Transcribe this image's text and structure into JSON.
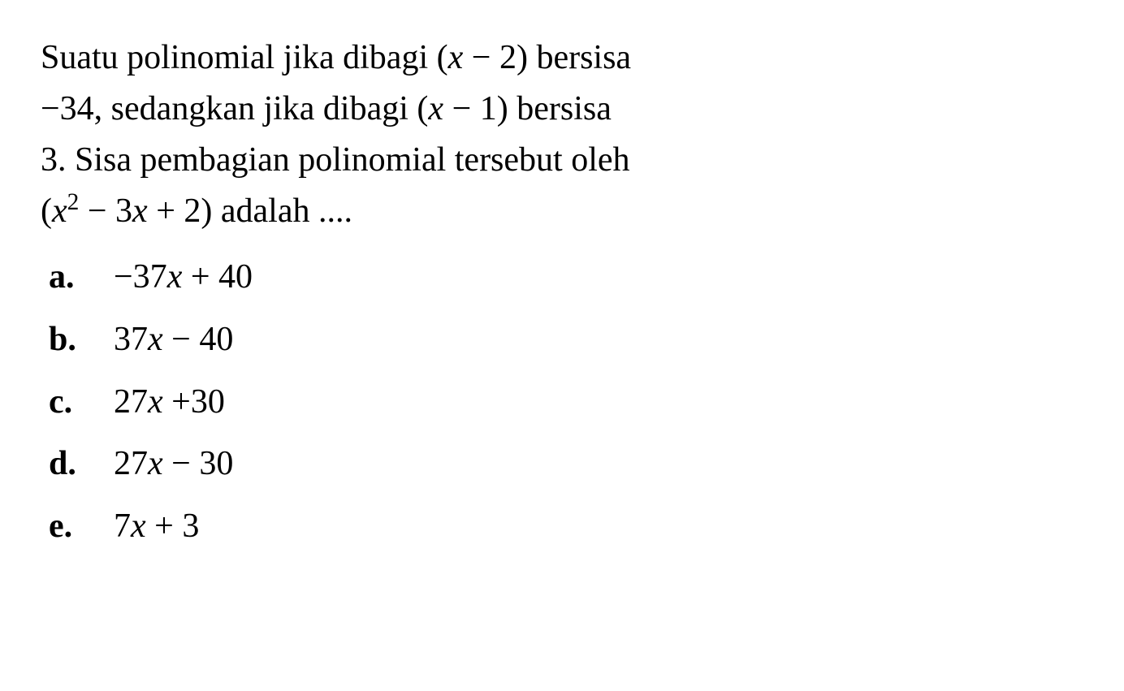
{
  "question": {
    "line1_part1": "Suatu polinomial jika dibagi (",
    "line1_var1": "x",
    "line1_part2": " − 2) bersisa",
    "line2_part1": "−34, sedangkan jika dibagi (",
    "line2_var1": "x",
    "line2_part2": " − 1) bersisa",
    "line3": "3. Sisa pembagian polinomial tersebut oleh",
    "line4_part1": "(",
    "line4_var1": "x",
    "line4_sup": "2",
    "line4_part2": " − 3",
    "line4_var2": "x",
    "line4_part3": " + 2) adalah ...."
  },
  "options": {
    "a": {
      "letter": "a.",
      "prefix": "−37",
      "var": "x",
      "suffix": " + 40"
    },
    "b": {
      "letter": "b.",
      "prefix": "37",
      "var": "x",
      "suffix": " − 40"
    },
    "c": {
      "letter": "c.",
      "prefix": "27",
      "var": "x",
      "suffix": " +30"
    },
    "d": {
      "letter": "d.",
      "prefix": "27",
      "var": "x",
      "suffix": " − 30"
    },
    "e": {
      "letter": "e.",
      "prefix": "7",
      "var": "x",
      "suffix": " + 3"
    }
  }
}
